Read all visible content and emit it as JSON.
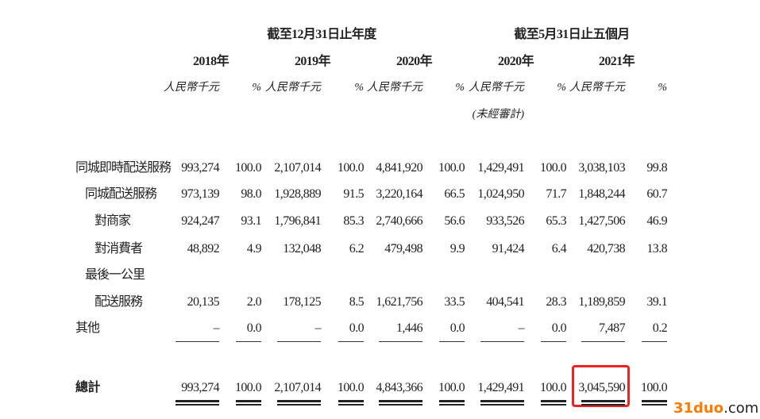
{
  "header": {
    "group1": "截至12月31日止年度",
    "group2": "截至5月31日止五個月",
    "years": [
      "2018年",
      "2019年",
      "2020年",
      "2020年",
      "2021年"
    ],
    "unit": "人民幣千元",
    "pct": "%",
    "unaudited": "(未經審計)"
  },
  "rows": [
    {
      "label": "同城即時配送服務",
      "indent": 0,
      "values": [
        "993,274",
        "100.0",
        "2,107,014",
        "100.0",
        "4,841,920",
        "100.0",
        "1,429,491",
        "100.0",
        "3,038,103",
        "99.8"
      ]
    },
    {
      "label": "同城配送服務",
      "indent": 1,
      "values": [
        "973,139",
        "98.0",
        "1,928,889",
        "91.5",
        "3,220,164",
        "66.5",
        "1,024,950",
        "71.7",
        "1,848,244",
        "60.7"
      ]
    },
    {
      "label": "對商家",
      "indent": 2,
      "values": [
        "924,247",
        "93.1",
        "1,796,841",
        "85.3",
        "2,740,666",
        "56.6",
        "933,526",
        "65.3",
        "1,427,506",
        "46.9"
      ]
    },
    {
      "label": "對消費者",
      "indent": 2,
      "values": [
        "48,892",
        "4.9",
        "132,048",
        "6.2",
        "479,498",
        "9.9",
        "91,424",
        "6.4",
        "420,738",
        "13.8"
      ]
    },
    {
      "label": "最後一公里",
      "indent": 1,
      "values": []
    },
    {
      "label": "配送服務",
      "indent": 2,
      "values": [
        "20,135",
        "2.0",
        "178,125",
        "8.5",
        "1,621,756",
        "33.5",
        "404,541",
        "28.3",
        "1,189,859",
        "39.1"
      ]
    },
    {
      "label": "其他",
      "indent": 0,
      "values": [
        "–",
        "0.0",
        "–",
        "0.0",
        "1,446",
        "0.0",
        "–",
        "0.0",
        "7,487",
        "0.2"
      ]
    }
  ],
  "total": {
    "label": "總計",
    "values": [
      "993,274",
      "100.0",
      "2,107,014",
      "100.0",
      "4,843,366",
      "100.0",
      "1,429,491",
      "100.0",
      "3,045,590",
      "100.0"
    ]
  },
  "highlight": {
    "value": "3,045,590",
    "color": "#ee2222"
  },
  "watermark": {
    "text_orange": "31duo",
    "text_dark": ".com",
    "color": "#ff7a00"
  }
}
